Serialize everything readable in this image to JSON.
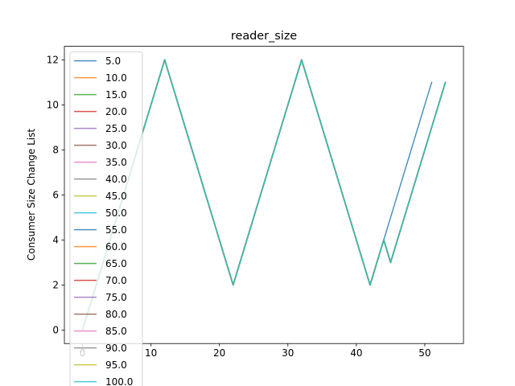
{
  "chart_data": {
    "type": "line",
    "title": "reader_size",
    "xlabel": "",
    "ylabel": "Consumer Size Change List",
    "xlim": [
      -2.65,
      55.65
    ],
    "ylim": [
      -0.6,
      12.6
    ],
    "xticks": [
      0,
      10,
      20,
      30,
      40,
      50
    ],
    "yticks": [
      0,
      2,
      4,
      6,
      8,
      10,
      12
    ],
    "grid": false,
    "legend_position": "upper-left",
    "series": [
      {
        "name": "5.0",
        "color": "#1f77b4",
        "x": [
          0,
          12,
          22,
          32,
          42,
          51
        ],
        "y": [
          0,
          12,
          2,
          12,
          2,
          11
        ]
      },
      {
        "name": "10.0",
        "color": "#ff7f0e",
        "x": [
          0,
          12,
          22,
          32,
          42,
          44,
          45,
          53
        ],
        "y": [
          0,
          12,
          2,
          12,
          2,
          4,
          3,
          11
        ]
      },
      {
        "name": "15.0",
        "color": "#2ca02c",
        "x": [
          0,
          12,
          22,
          32,
          42,
          44,
          45,
          53
        ],
        "y": [
          0,
          12,
          2,
          12,
          2,
          4,
          3,
          11
        ]
      },
      {
        "name": "20.0",
        "color": "#d62728",
        "x": [
          0,
          12,
          22,
          32,
          42,
          44,
          45,
          53
        ],
        "y": [
          0,
          12,
          2,
          12,
          2,
          4,
          3,
          11
        ]
      },
      {
        "name": "25.0",
        "color": "#9467bd",
        "x": [
          0,
          12,
          22,
          32,
          42,
          44,
          45,
          53
        ],
        "y": [
          0,
          12,
          2,
          12,
          2,
          4,
          3,
          11
        ]
      },
      {
        "name": "30.0",
        "color": "#8c564b",
        "x": [
          0,
          12,
          22,
          32,
          42,
          44,
          45,
          53
        ],
        "y": [
          0,
          12,
          2,
          12,
          2,
          4,
          3,
          11
        ]
      },
      {
        "name": "35.0",
        "color": "#e377c2",
        "x": [
          0,
          12,
          22,
          32,
          42,
          44,
          45,
          53
        ],
        "y": [
          0,
          12,
          2,
          12,
          2,
          4,
          3,
          11
        ]
      },
      {
        "name": "40.0",
        "color": "#7f7f7f",
        "x": [
          0,
          12,
          22,
          32,
          42,
          44,
          45,
          53
        ],
        "y": [
          0,
          12,
          2,
          12,
          2,
          4,
          3,
          11
        ]
      },
      {
        "name": "45.0",
        "color": "#bcbd22",
        "x": [
          0,
          12,
          22,
          32,
          42,
          44,
          45,
          53
        ],
        "y": [
          0,
          12,
          2,
          12,
          2,
          4,
          3,
          11
        ]
      },
      {
        "name": "50.0",
        "color": "#17becf",
        "x": [
          0,
          12,
          22,
          32,
          42,
          44,
          45,
          53
        ],
        "y": [
          0,
          12,
          2,
          12,
          2,
          4,
          3,
          11
        ]
      },
      {
        "name": "55.0",
        "color": "#1f77b4",
        "x": [
          0,
          12,
          22,
          32,
          42,
          44,
          45,
          53
        ],
        "y": [
          0,
          12,
          2,
          12,
          2,
          4,
          3,
          11
        ]
      },
      {
        "name": "60.0",
        "color": "#ff7f0e",
        "x": [
          0,
          12,
          22,
          32,
          42,
          44,
          45,
          53
        ],
        "y": [
          0,
          12,
          2,
          12,
          2,
          4,
          3,
          11
        ]
      },
      {
        "name": "65.0",
        "color": "#2ca02c",
        "x": [
          0,
          12,
          22,
          32,
          42,
          44,
          45,
          53
        ],
        "y": [
          0,
          12,
          2,
          12,
          2,
          4,
          3,
          11
        ]
      },
      {
        "name": "70.0",
        "color": "#d62728",
        "x": [
          0,
          12,
          22,
          32,
          42,
          44,
          45,
          53
        ],
        "y": [
          0,
          12,
          2,
          12,
          2,
          4,
          3,
          11
        ]
      },
      {
        "name": "75.0",
        "color": "#9467bd",
        "x": [
          0,
          12,
          22,
          32,
          42,
          44,
          45,
          53
        ],
        "y": [
          0,
          12,
          2,
          12,
          2,
          4,
          3,
          11
        ]
      },
      {
        "name": "80.0",
        "color": "#8c564b",
        "x": [
          0,
          12,
          22,
          32,
          42,
          44,
          45,
          53
        ],
        "y": [
          0,
          12,
          2,
          12,
          2,
          4,
          3,
          11
        ]
      },
      {
        "name": "85.0",
        "color": "#e377c2",
        "x": [
          0,
          12,
          22,
          32,
          42,
          44,
          45,
          53
        ],
        "y": [
          0,
          12,
          2,
          12,
          2,
          4,
          3,
          11
        ]
      },
      {
        "name": "90.0",
        "color": "#7f7f7f",
        "x": [
          0,
          12,
          22,
          32,
          42,
          44,
          45,
          53
        ],
        "y": [
          0,
          12,
          2,
          12,
          2,
          4,
          3,
          11
        ]
      },
      {
        "name": "95.0",
        "color": "#bcbd22",
        "x": [
          0,
          12,
          22,
          32,
          42,
          44,
          45,
          53
        ],
        "y": [
          0,
          12,
          2,
          12,
          2,
          4,
          3,
          11
        ]
      },
      {
        "name": "100.0",
        "color": "#17becf",
        "x": [
          0,
          12,
          22,
          32,
          42,
          44,
          45,
          53
        ],
        "y": [
          0,
          12,
          2,
          12,
          2,
          4,
          3,
          11
        ]
      }
    ]
  }
}
